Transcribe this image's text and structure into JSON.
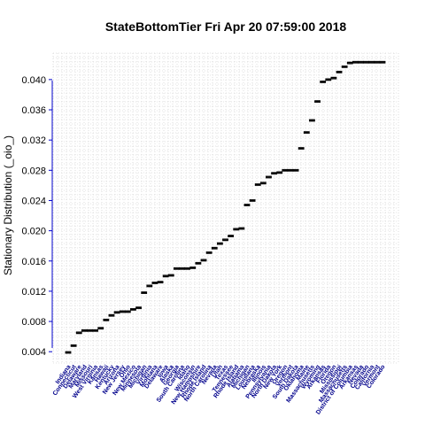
{
  "chart_data": {
    "type": "box",
    "title": "StateBottomTier  Fri Apr 20 07:59:00 2018",
    "xlabel": "",
    "ylabel": "Stationary Distribution (_oio_)",
    "ylim": [
      0.0025,
      0.0435
    ],
    "yticks": [
      0.004,
      0.008,
      0.012,
      0.016,
      0.02,
      0.024,
      0.028,
      0.032,
      0.036,
      0.04
    ],
    "ytick_labels": [
      "0.004",
      "0.008",
      "0.012",
      "0.016",
      "0.020",
      "0.024",
      "0.028",
      "0.032",
      "0.036",
      "0.040"
    ],
    "grid": true,
    "axis_color": "#0000cd",
    "tick_label_color": "#00008b",
    "categories": [
      "Indiana",
      "Connecticut",
      "Delaware",
      "Maryland",
      "Missouri",
      "West Virginia",
      "Kansas",
      "Hawaii",
      "Kentucky",
      "Arizona",
      "New Jersey",
      "Ohio",
      "New Mexico",
      "Minnesota",
      "Michigan",
      "Virginia",
      "Montana",
      "Delaware",
      "Iowa",
      "Alaska",
      "Georgia",
      "South Carolina",
      "Idaho",
      "Wisconsin",
      "New Hampshire",
      "Rhode Island",
      "North Carolina",
      "Nevada",
      "Utah",
      "Texas",
      "Tennessee",
      "Rhode Island",
      "Alabama",
      "Michigan",
      "Louisiana",
      "Nebraska",
      "Illinois",
      "Pennsylvania",
      "North Dakota",
      "New York",
      "Oregon",
      "Vermont",
      "South Dakota",
      "Oklahoma",
      "Maine",
      "Massachusetts",
      "Wyoming",
      "Arkansas",
      "Florida",
      "Oregon",
      "Mississippi",
      "Massachusetts",
      "District of Columbia",
      "Arkansas",
      "Nevada",
      "Colorado",
      "California",
      "Vermont",
      "Colorado"
    ],
    "values": [
      0.0039,
      0.0048,
      0.0065,
      0.0068,
      0.0068,
      0.0068,
      0.0071,
      0.0082,
      0.0088,
      0.0092,
      0.0093,
      0.0093,
      0.0096,
      0.0098,
      0.0118,
      0.0127,
      0.0131,
      0.0132,
      0.014,
      0.0141,
      0.015,
      0.015,
      0.015,
      0.0151,
      0.0157,
      0.0161,
      0.0171,
      0.0177,
      0.0183,
      0.0188,
      0.0193,
      0.0202,
      0.0203,
      0.0234,
      0.024,
      0.0261,
      0.0263,
      0.0271,
      0.0276,
      0.0277,
      0.028,
      0.028,
      0.028,
      0.0309,
      0.033,
      0.0346,
      0.0371,
      0.0397,
      0.04,
      0.0402,
      0.041,
      0.0417,
      0.0422,
      0.0423,
      0.0423,
      0.0423,
      0.0423,
      0.0423,
      0.0423
    ]
  }
}
